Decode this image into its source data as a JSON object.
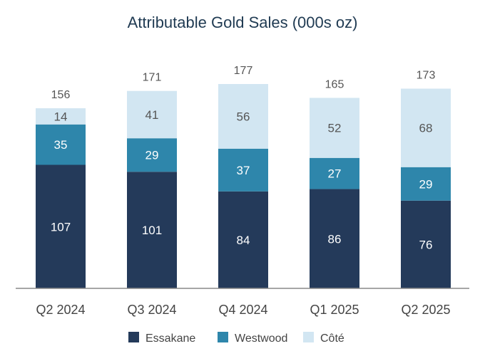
{
  "chart_data": {
    "type": "bar",
    "stacked": true,
    "title": "Attributable Gold Sales (000s oz)",
    "categories": [
      "Q2 2024",
      "Q3 2024",
      "Q4 2024",
      "Q1 2025",
      "Q2 2025"
    ],
    "series": [
      {
        "name": "Essakane",
        "color": "#243a5a",
        "label_color": "#ffffff",
        "values": [
          107,
          101,
          84,
          86,
          76
        ]
      },
      {
        "name": "Westwood",
        "color": "#2e86ab",
        "label_color": "#ffffff",
        "values": [
          35,
          29,
          37,
          27,
          29
        ]
      },
      {
        "name": "Côté",
        "color": "#d2e6f2",
        "label_color": "#555555",
        "values": [
          14,
          41,
          56,
          52,
          68
        ]
      }
    ],
    "totals": [
      156,
      171,
      177,
      165,
      173
    ],
    "ylim": [
      0,
      177
    ],
    "legend_position": "bottom",
    "grid": false
  }
}
